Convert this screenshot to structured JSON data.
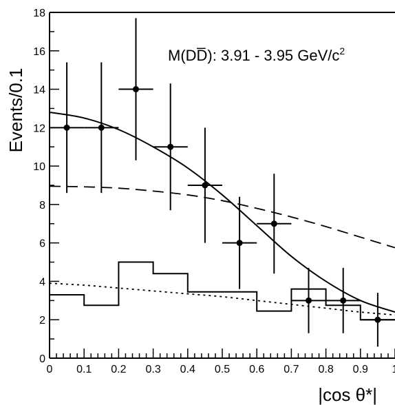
{
  "chart_data": {
    "type": "scatter",
    "annotation": "M(DD̅): 3.91 - 3.95 GeV/c",
    "annotation_superscript": "2",
    "xlabel": "|cos θ*|",
    "ylabel": "Events/0.1",
    "xlim": [
      0,
      1
    ],
    "ylim": [
      0,
      18
    ],
    "x_ticks": [
      "0",
      "0.1",
      "0.2",
      "0.3",
      "0.4",
      "0.5",
      "0.6",
      "0.7",
      "0.8",
      "0.9",
      "1"
    ],
    "y_ticks": [
      "0",
      "2",
      "4",
      "6",
      "8",
      "10",
      "12",
      "14",
      "16",
      "18"
    ],
    "grid": false,
    "data_points": {
      "x": [
        0.05,
        0.15,
        0.25,
        0.35,
        0.45,
        0.55,
        0.65,
        0.75,
        0.85,
        0.95
      ],
      "y": [
        12,
        12,
        14,
        11,
        9,
        6,
        7,
        3,
        3,
        2
      ],
      "y_err_low": [
        3.4,
        3.4,
        3.7,
        3.3,
        3.0,
        2.4,
        2.6,
        1.7,
        1.7,
        1.4
      ],
      "y_err_high": [
        3.4,
        3.4,
        3.7,
        3.3,
        3.0,
        2.4,
        2.6,
        1.7,
        1.7,
        1.4
      ],
      "x_err": 0.05
    },
    "histogram": {
      "bin_edges": [
        0,
        0.1,
        0.2,
        0.3,
        0.4,
        0.5,
        0.6,
        0.7,
        0.8,
        0.9,
        1.0
      ],
      "values": [
        3.3,
        2.75,
        5.0,
        4.4,
        3.45,
        3.45,
        2.45,
        3.6,
        2.75,
        2.0
      ]
    },
    "curves": [
      {
        "style": "solid",
        "x": [
          0,
          0.1,
          0.2,
          0.3,
          0.4,
          0.5,
          0.6,
          0.7,
          0.8,
          0.9,
          1.0
        ],
        "y": [
          12.8,
          12.5,
          11.9,
          11.0,
          9.9,
          8.5,
          6.9,
          5.3,
          4.0,
          3.0,
          2.4
        ]
      },
      {
        "style": "dashed",
        "x": [
          0,
          0.1,
          0.2,
          0.3,
          0.4,
          0.5,
          0.6,
          0.7,
          0.8,
          0.9,
          1.0
        ],
        "y": [
          8.95,
          8.92,
          8.85,
          8.7,
          8.5,
          8.2,
          7.8,
          7.35,
          6.85,
          6.3,
          5.75
        ]
      },
      {
        "style": "dotted",
        "x": [
          0,
          0.1,
          0.2,
          0.3,
          0.4,
          0.5,
          0.6,
          0.7,
          0.8,
          0.9,
          1.0
        ],
        "y": [
          3.9,
          3.8,
          3.65,
          3.5,
          3.35,
          3.2,
          3.0,
          2.8,
          2.6,
          2.4,
          2.25
        ]
      }
    ]
  }
}
